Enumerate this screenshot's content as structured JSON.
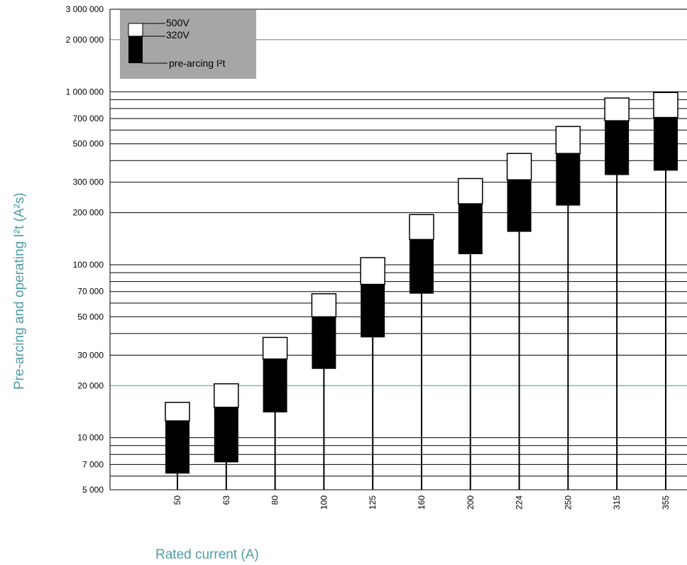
{
  "chart_data": {
    "type": "bar",
    "subtype": "floating-range-log",
    "xlabel": "Rated current (A)",
    "ylabel": "Pre-arcing and operating I²t (A²s)",
    "y_scale": "log",
    "ylim": [
      5000,
      3000000
    ],
    "y_ticks": [
      5000,
      7000,
      10000,
      20000,
      30000,
      50000,
      70000,
      100000,
      200000,
      300000,
      500000,
      700000,
      1000000,
      2000000,
      3000000
    ],
    "y_tick_labels": [
      "5 000",
      "7 000",
      "10 000",
      "20 000",
      "30 000",
      "50 000",
      "70 000",
      "100 000",
      "200 000",
      "300 000",
      "500 000",
      "700 000",
      "1 000 000",
      "2 000 000",
      "3 000 000"
    ],
    "categories": [
      "50",
      "63",
      "80",
      "100",
      "125",
      "160",
      "200",
      "224",
      "250",
      "315",
      "355"
    ],
    "series": [
      {
        "name": "pre-arcing I²t",
        "color": "#000000",
        "low": [
          6200,
          7200,
          14000,
          25000,
          38000,
          68000,
          115000,
          155000,
          220000,
          330000,
          350000
        ],
        "high": [
          12500,
          15000,
          28500,
          50000,
          77000,
          140000,
          225000,
          310000,
          440000,
          680000,
          710000
        ]
      },
      {
        "name": "320V",
        "color": "#ffffff",
        "values": [
          16000,
          20500,
          38000,
          68000,
          110000,
          195000,
          315000,
          440000,
          630000,
          920000,
          990000
        ]
      },
      {
        "name": "500V",
        "color": "#ffffff",
        "values": [
          16000,
          20500,
          38000,
          68000,
          110000,
          195000,
          315000,
          440000,
          630000,
          920000,
          990000
        ]
      }
    ],
    "legend": {
      "placement": "top-left",
      "entries": [
        "500V",
        "320V",
        "pre-arcing I²t"
      ],
      "background": "#a6a6a6"
    },
    "grid": true,
    "colors": {
      "grid_major": "#000000",
      "grid_minor": "#4a8f95",
      "axis_title": "#4f9ca6"
    }
  }
}
